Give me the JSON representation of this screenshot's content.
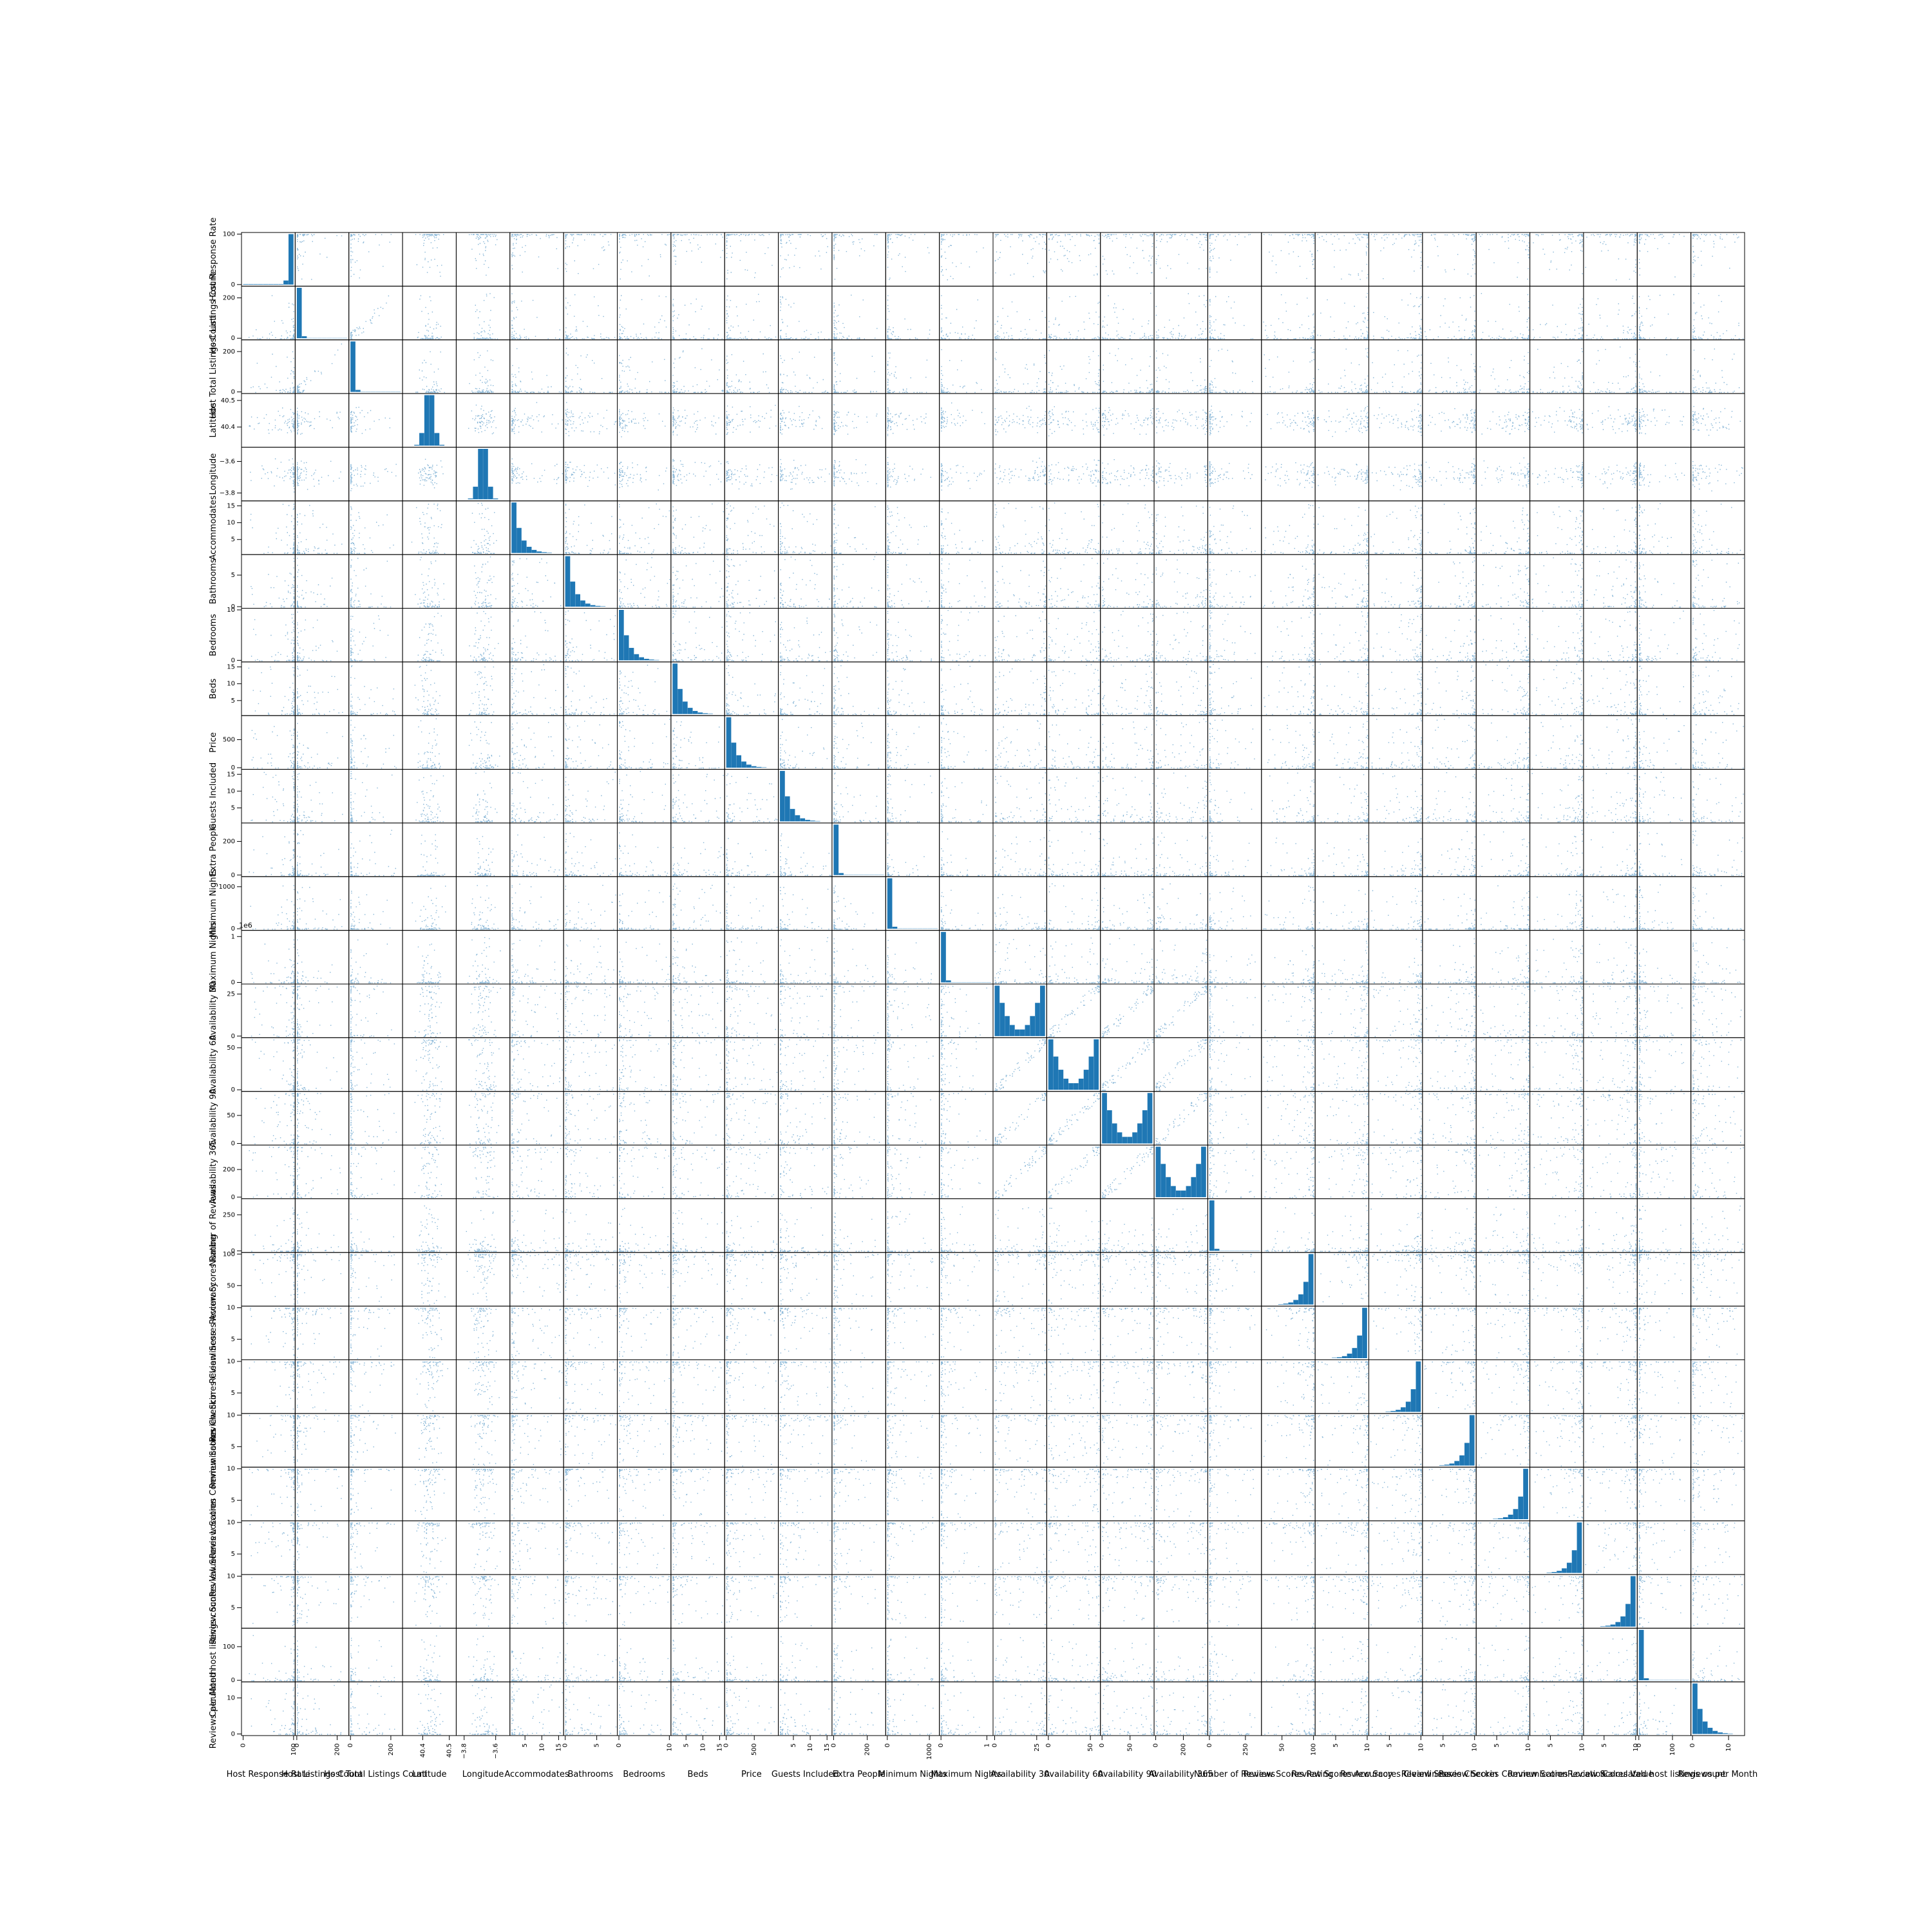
{
  "chart_data": {
    "type": "scatter",
    "title": "",
    "variables": [
      {
        "name": "Host Response Rate",
        "min": 0,
        "max": 100,
        "ticks": [
          0,
          100
        ],
        "tick_labels": [
          "0",
          "100"
        ],
        "hist": "spike-right"
      },
      {
        "name": "Host Listings Count",
        "min": 0,
        "max": 250,
        "ticks": [
          0,
          200
        ],
        "tick_labels": [
          "0",
          "200"
        ],
        "hist": "spike-left"
      },
      {
        "name": "Host Total Listings Count",
        "min": 0,
        "max": 250,
        "ticks": [
          0,
          200
        ],
        "tick_labels": [
          "0",
          "200"
        ],
        "hist": "spike-left"
      },
      {
        "name": "Latitude",
        "min": 40.33,
        "max": 40.52,
        "ticks": [
          40.4,
          40.5
        ],
        "tick_labels": [
          "40.4",
          "40.5"
        ],
        "hist": "mid"
      },
      {
        "name": "Longitude",
        "min": -3.84,
        "max": -3.52,
        "ticks": [
          -3.8,
          -3.6
        ],
        "tick_labels": [
          "−3.8",
          "−3.6"
        ],
        "hist": "mid"
      },
      {
        "name": "Accommodates",
        "min": 1,
        "max": 16,
        "ticks": [
          5,
          10,
          15
        ],
        "tick_labels": [
          "5",
          "10",
          "15"
        ],
        "hist": "decay"
      },
      {
        "name": "Bathrooms",
        "min": 0,
        "max": 8,
        "ticks": [
          0,
          5
        ],
        "tick_labels": [
          "0",
          "5"
        ],
        "hist": "decay"
      },
      {
        "name": "Bedrooms",
        "min": 0,
        "max": 10,
        "ticks": [
          0,
          10
        ],
        "tick_labels": [
          "0",
          "10"
        ],
        "hist": "decay"
      },
      {
        "name": "Beds",
        "min": 1,
        "max": 16,
        "ticks": [
          5,
          10,
          15
        ],
        "tick_labels": [
          "5",
          "10",
          "15"
        ],
        "hist": "decay"
      },
      {
        "name": "Price",
        "min": 0,
        "max": 900,
        "ticks": [
          0,
          500
        ],
        "tick_labels": [
          "0",
          "500"
        ],
        "hist": "decay"
      },
      {
        "name": "Guests Included",
        "min": 1,
        "max": 16,
        "ticks": [
          5,
          10,
          15
        ],
        "tick_labels": [
          "5",
          "10",
          "15"
        ],
        "hist": "decay"
      },
      {
        "name": "Extra People",
        "min": 0,
        "max": 300,
        "ticks": [
          0,
          200
        ],
        "tick_labels": [
          "0",
          "200"
        ],
        "hist": "spike-left"
      },
      {
        "name": "Minimum Nights",
        "min": 0,
        "max": 1200,
        "ticks": [
          0,
          1000
        ],
        "tick_labels": [
          "0",
          "1000"
        ],
        "hist": "spike-left"
      },
      {
        "name": "Maximum Nights",
        "min": 0,
        "max": 1.1,
        "ticks": [
          0,
          1
        ],
        "tick_labels": [
          "0",
          "1"
        ],
        "offset_label": "1e6",
        "hist": "spike-left"
      },
      {
        "name": "Availability 30",
        "min": 0,
        "max": 30,
        "ticks": [
          0,
          25
        ],
        "tick_labels": [
          "0",
          "25"
        ],
        "hist": "u"
      },
      {
        "name": "Availability 60",
        "min": 0,
        "max": 60,
        "ticks": [
          0,
          50
        ],
        "tick_labels": [
          "0",
          "50"
        ],
        "hist": "u"
      },
      {
        "name": "Availability 90",
        "min": 0,
        "max": 90,
        "ticks": [
          0,
          50
        ],
        "tick_labels": [
          "0",
          "50"
        ],
        "hist": "u"
      },
      {
        "name": "Availability 365",
        "min": 0,
        "max": 365,
        "ticks": [
          0,
          200
        ],
        "tick_labels": [
          "0",
          "200"
        ],
        "hist": "u"
      },
      {
        "name": "Number of Reviews",
        "min": 0,
        "max": 350,
        "ticks": [
          0,
          250
        ],
        "tick_labels": [
          "0",
          "250"
        ],
        "hist": "spike-left"
      },
      {
        "name": "Review Scores Rating",
        "min": 20,
        "max": 100,
        "ticks": [
          50,
          100
        ],
        "tick_labels": [
          "50",
          "100"
        ],
        "hist": "rise"
      },
      {
        "name": "Review Scores Accuracy",
        "min": 2,
        "max": 10,
        "ticks": [
          5,
          10
        ],
        "tick_labels": [
          "5",
          "10"
        ],
        "hist": "rise"
      },
      {
        "name": "Review Scores Cleanliness",
        "min": 2,
        "max": 10,
        "ticks": [
          5,
          10
        ],
        "tick_labels": [
          "5",
          "10"
        ],
        "hist": "rise"
      },
      {
        "name": "Review Scores Checkin",
        "min": 2,
        "max": 10,
        "ticks": [
          5,
          10
        ],
        "tick_labels": [
          "5",
          "10"
        ],
        "hist": "rise"
      },
      {
        "name": "Review Scores Communication",
        "min": 2,
        "max": 10,
        "ticks": [
          5,
          10
        ],
        "tick_labels": [
          "5",
          "10"
        ],
        "hist": "rise"
      },
      {
        "name": "Review Scores Location",
        "min": 2,
        "max": 10,
        "ticks": [
          5,
          10
        ],
        "tick_labels": [
          "5",
          "10"
        ],
        "hist": "rise"
      },
      {
        "name": "Review Scores Value",
        "min": 2,
        "max": 10,
        "ticks": [
          5,
          10
        ],
        "tick_labels": [
          "5",
          "10"
        ],
        "hist": "rise"
      },
      {
        "name": "Calculated host listings count",
        "min": 0,
        "max": 150,
        "ticks": [
          0,
          100
        ],
        "tick_labels": [
          "0",
          "100"
        ],
        "hist": "spike-left"
      },
      {
        "name": "Reviews per Month",
        "min": 0,
        "max": 14,
        "ticks": [
          0,
          10
        ],
        "tick_labels": [
          "0",
          "10"
        ],
        "hist": "decay"
      }
    ],
    "diagonal": "histogram",
    "off_diagonal": "scatter",
    "color": "#1f77b4",
    "grid": false
  }
}
